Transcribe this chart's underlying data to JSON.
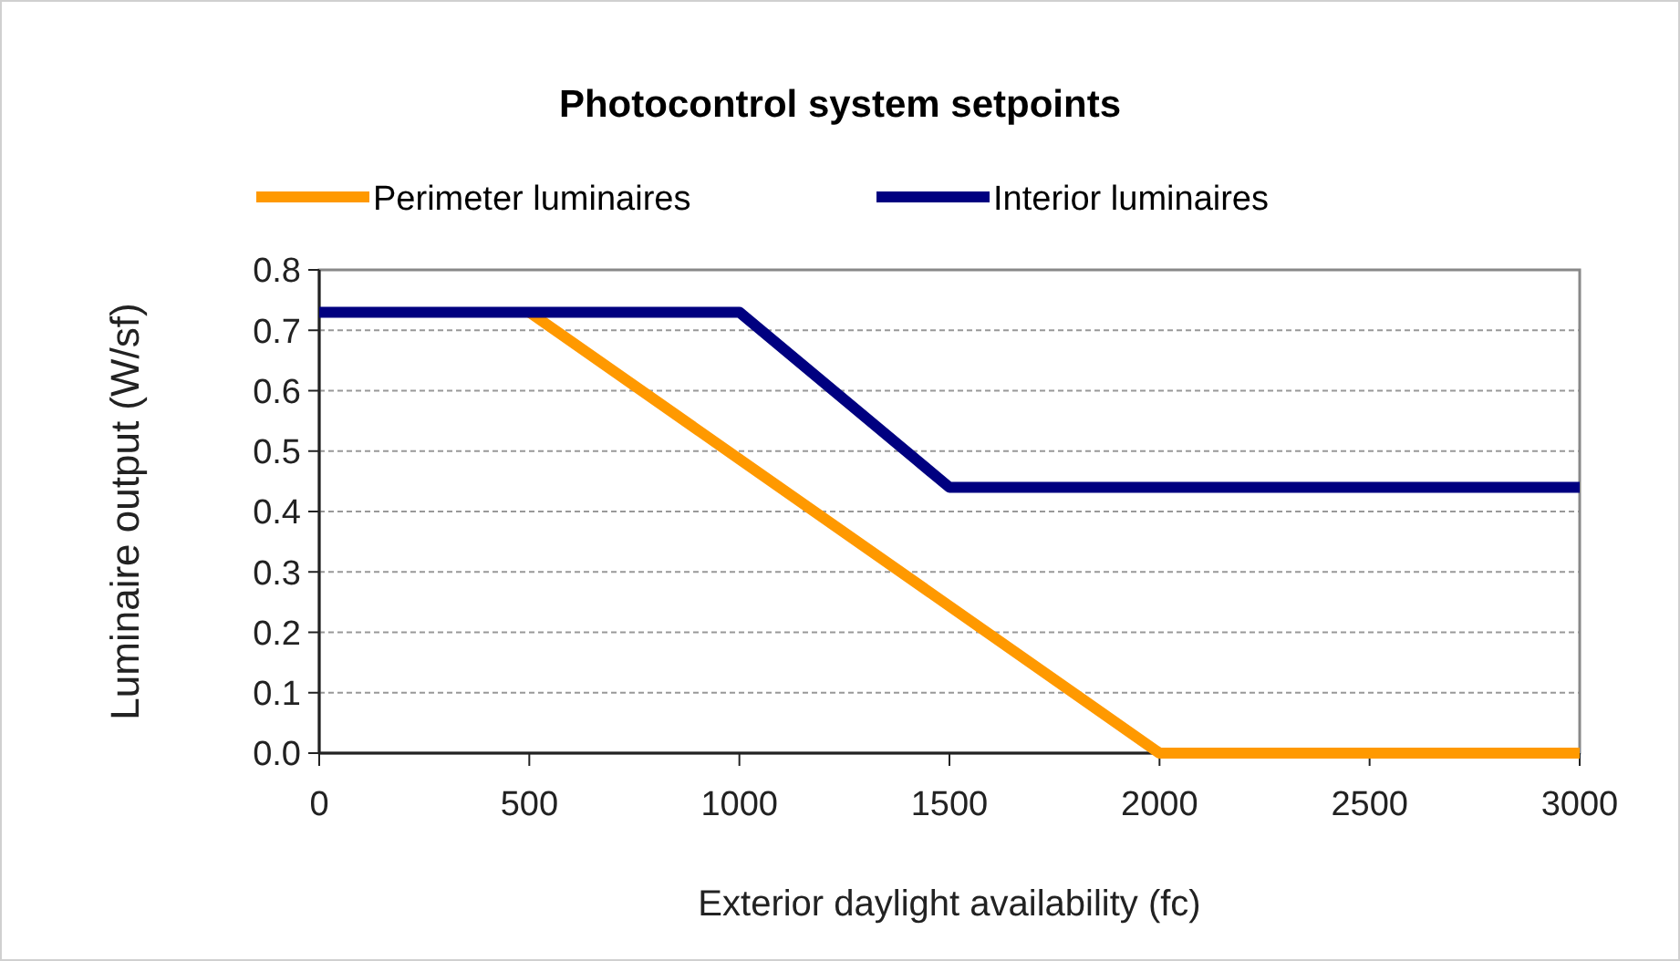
{
  "chart_data": {
    "type": "line",
    "title": "Photocontrol system setpoints",
    "xlabel": "Exterior daylight availability (fc)",
    "ylabel": "Luminaire output (W/sf)",
    "xlim": [
      0,
      3000
    ],
    "xticks": [
      0,
      500,
      1000,
      1500,
      2000,
      2500,
      3000
    ],
    "ylim": [
      0,
      0.8
    ],
    "yticks": [
      {
        "value": 0,
        "label": "0.0"
      },
      0.1,
      0.2,
      0.3,
      0.4,
      0.5,
      0.6,
      0.7,
      0.8
    ],
    "grid": "y",
    "legend": "top",
    "marker": "none",
    "line_style": "solid",
    "series": [
      {
        "name": "Perimeter luminaires",
        "color": "#ff9900",
        "x": [
          500,
          2000,
          3000
        ],
        "values": [
          0.73,
          0,
          0
        ]
      },
      {
        "name": "Interior luminaires",
        "color": "#000080",
        "x": [
          0,
          1000,
          1500,
          3000
        ],
        "values": [
          0.73,
          0.73,
          0.44,
          0.44
        ]
      }
    ]
  }
}
